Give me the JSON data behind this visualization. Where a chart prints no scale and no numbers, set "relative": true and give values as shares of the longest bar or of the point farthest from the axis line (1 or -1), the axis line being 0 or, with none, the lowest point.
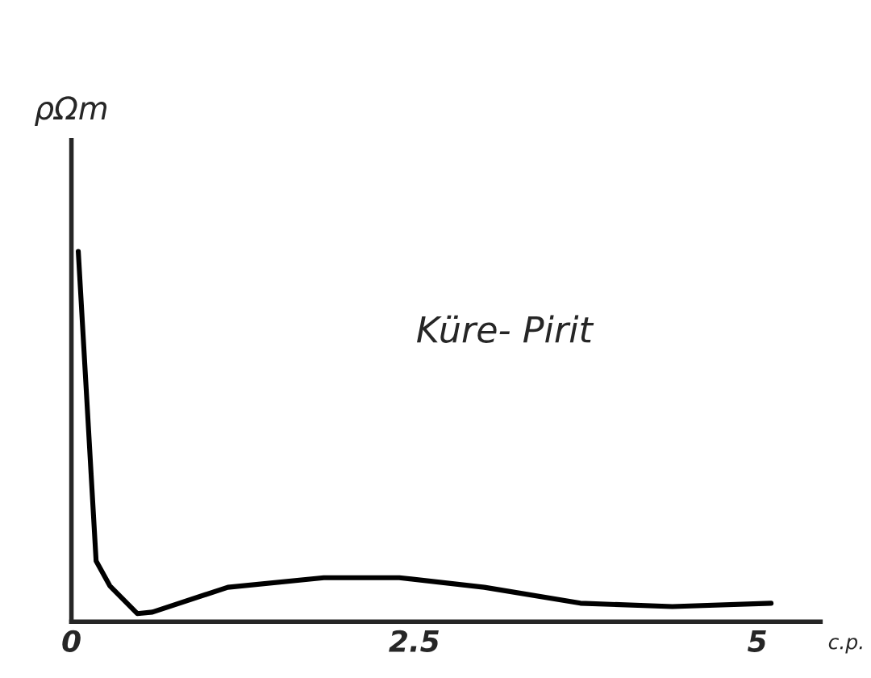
{
  "chart_data": {
    "type": "line",
    "title": "Küre- Pirit",
    "ylabel": "ρΩm",
    "xlabel": "c.p.",
    "relative": true,
    "x": [
      0.05,
      0.18,
      0.28,
      0.48,
      0.59,
      1.14,
      1.84,
      2.39,
      3.01,
      3.71,
      4.38,
      5.1
    ],
    "series": [
      {
        "color": "#000000",
        "values": [
          1,
          0.164,
          0.097,
          0.022,
          0.026,
          0.093,
          0.119,
          0.119,
          0.093,
          0.05,
          0.041,
          0.05
        ]
      }
    ],
    "xlim": [
      0,
      5.46
    ],
    "xticks": [
      0,
      2.5,
      5
    ],
    "grid": false,
    "marker": "none",
    "line_style": "solid",
    "tick_labels": "x"
  }
}
